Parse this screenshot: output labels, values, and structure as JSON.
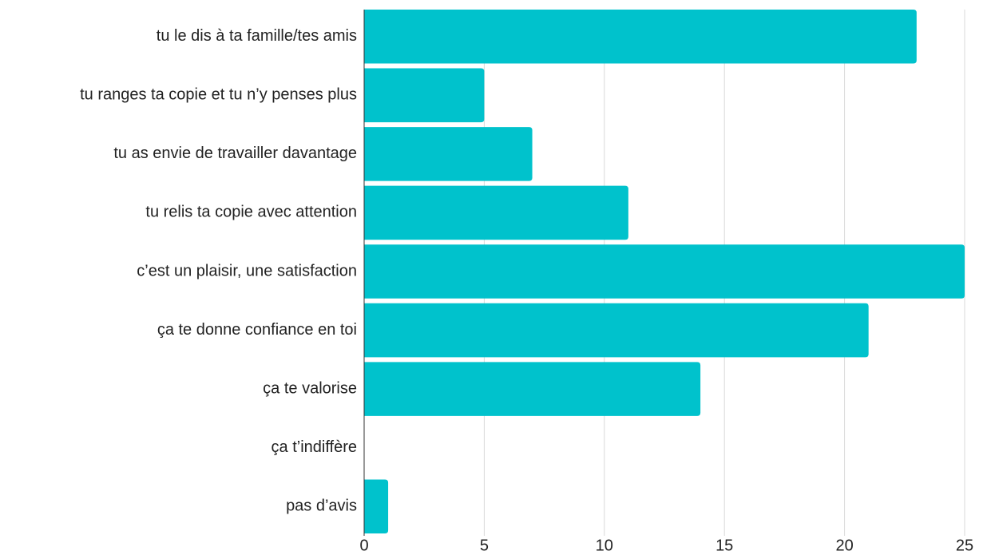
{
  "chart_data": {
    "type": "bar",
    "orientation": "horizontal",
    "categories": [
      "tu le dis à ta famille/tes amis",
      "tu ranges ta copie et tu n’y penses plus",
      "tu as envie de travailler davantage",
      "tu relis ta copie avec attention",
      "c’est un plaisir, une satisfaction",
      "ça te donne confiance en toi",
      "ça te valorise",
      "ça t’indiffère",
      "pas d’avis"
    ],
    "values": [
      23,
      5,
      7,
      11,
      25,
      21,
      14,
      0,
      1
    ],
    "color": "#00c2cc",
    "xlim": [
      0,
      25
    ],
    "xticks": [
      0,
      5,
      10,
      15,
      20,
      25
    ],
    "grid": true
  }
}
